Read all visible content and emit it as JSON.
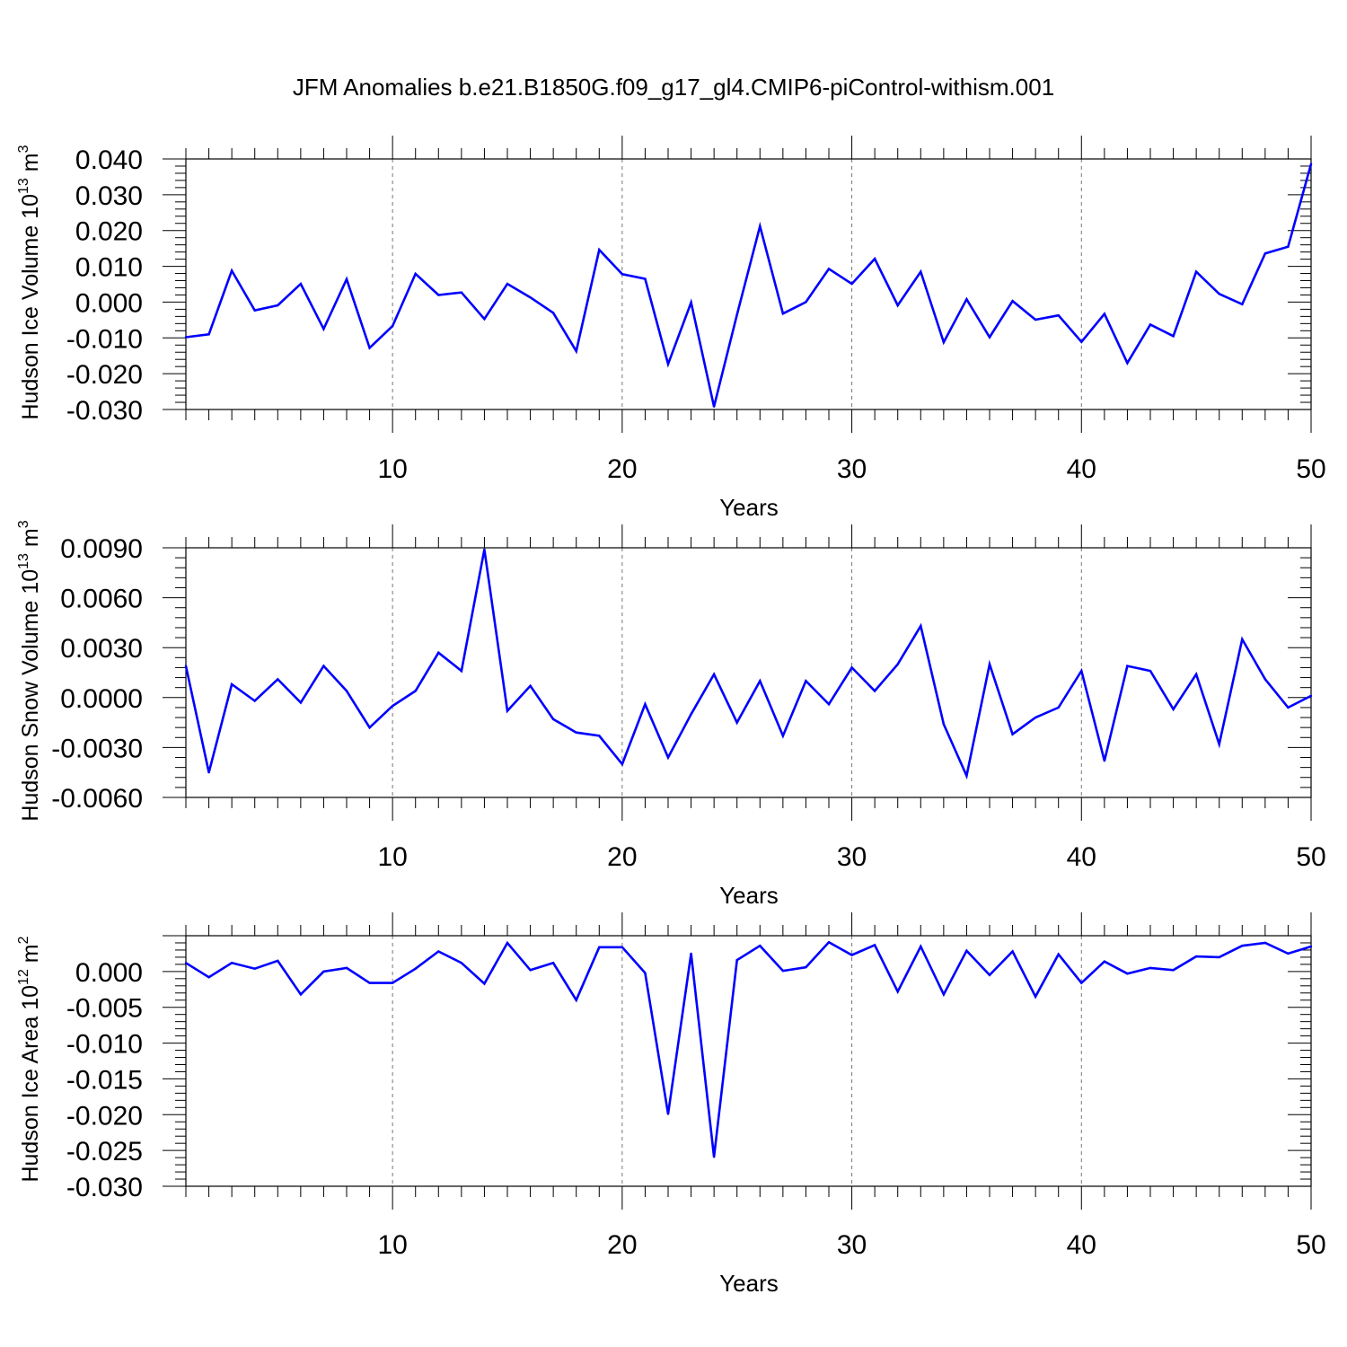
{
  "title": "JFM Anomalies b.e21.B1850G.f09_g17_gl4.CMIP6-piControl-withism.001",
  "colors": {
    "line": "#0000ff",
    "axes": "#000000",
    "grid": "#777777"
  },
  "chart_data": [
    {
      "type": "line",
      "xlabel": "Years",
      "ylabel": "Hudson Ice Volume 10",
      "ylabel_exp": "13",
      "ylabel_unit": " m",
      "ylabel_unit_exp": "3",
      "xlim": [
        1,
        50
      ],
      "ylim": [
        -0.03,
        0.04
      ],
      "xticks": [
        10,
        20,
        30,
        40,
        50
      ],
      "xtick_labels": [
        "10",
        "20",
        "30",
        "40",
        "50"
      ],
      "yticks": [
        -0.03,
        -0.02,
        -0.01,
        0.0,
        0.01,
        0.02,
        0.03,
        0.04
      ],
      "ytick_labels": [
        "-0.030",
        "-0.020",
        "-0.010",
        "0.000",
        "0.010",
        "0.020",
        "0.030",
        "0.040"
      ],
      "grid": "x-dashed",
      "x": [
        1,
        2,
        3,
        4,
        5,
        6,
        7,
        8,
        9,
        10,
        11,
        12,
        13,
        14,
        15,
        16,
        17,
        18,
        19,
        20,
        21,
        22,
        23,
        24,
        25,
        26,
        27,
        28,
        29,
        30,
        31,
        32,
        33,
        34,
        35,
        36,
        37,
        38,
        39,
        40,
        41,
        42,
        43,
        44,
        45,
        46,
        47,
        48,
        49,
        50
      ],
      "y": [
        -0.0098,
        -0.009,
        0.0088,
        -0.0023,
        -0.0009,
        0.0051,
        -0.0075,
        0.0064,
        -0.0128,
        -0.0067,
        0.0079,
        0.002,
        0.0027,
        -0.0047,
        0.0051,
        0.0013,
        -0.003,
        -0.0137,
        0.0146,
        0.0078,
        0.0065,
        -0.0173,
        -0.0001,
        -0.0292,
        -0.0035,
        0.0212,
        -0.0032,
        0.0,
        0.0093,
        0.0051,
        0.0121,
        -0.0009,
        0.0085,
        -0.0112,
        0.0008,
        -0.0098,
        0.0003,
        -0.0049,
        -0.0037,
        -0.0111,
        -0.0033,
        -0.017,
        -0.0063,
        -0.0095,
        0.0085,
        0.0023,
        -0.0006,
        0.0136,
        0.0155,
        0.0386
      ]
    },
    {
      "type": "line",
      "xlabel": "Years",
      "ylabel": "Hudson Snow Volume 10",
      "ylabel_exp": "13",
      "ylabel_unit": " m",
      "ylabel_unit_exp": "3",
      "xlim": [
        1,
        50
      ],
      "ylim": [
        -0.006,
        0.009
      ],
      "xticks": [
        10,
        20,
        30,
        40,
        50
      ],
      "xtick_labels": [
        "10",
        "20",
        "30",
        "40",
        "50"
      ],
      "yticks": [
        -0.006,
        -0.003,
        0.0,
        0.003,
        0.006,
        0.009
      ],
      "ytick_labels": [
        "-0.0060",
        "-0.0030",
        "0.0000",
        "0.0030",
        "0.0060",
        "0.0090"
      ],
      "grid": "x-dashed",
      "x": [
        1,
        2,
        3,
        4,
        5,
        6,
        7,
        8,
        9,
        10,
        11,
        12,
        13,
        14,
        15,
        16,
        17,
        18,
        19,
        20,
        21,
        22,
        23,
        24,
        25,
        26,
        27,
        28,
        29,
        30,
        31,
        32,
        33,
        34,
        35,
        36,
        37,
        38,
        39,
        40,
        41,
        42,
        43,
        44,
        45,
        46,
        47,
        48,
        49,
        50
      ],
      "y": [
        0.0019,
        -0.0045,
        0.0008,
        -0.0002,
        0.0011,
        -0.0003,
        0.0019,
        0.0004,
        -0.0018,
        -0.0005,
        0.0004,
        0.0027,
        0.0016,
        0.0089,
        -0.0008,
        0.0007,
        -0.0013,
        -0.0021,
        -0.0023,
        -0.004,
        -0.0004,
        -0.0036,
        -0.001,
        0.0014,
        -0.0015,
        0.001,
        -0.0023,
        0.001,
        -0.0004,
        0.0018,
        0.0004,
        0.002,
        0.0043,
        -0.0016,
        -0.0047,
        0.002,
        -0.0022,
        -0.0012,
        -0.0006,
        0.0016,
        -0.0038,
        0.0019,
        0.0016,
        -0.0007,
        0.0014,
        -0.0028,
        0.0035,
        0.0011,
        -0.0006,
        0.0001
      ]
    },
    {
      "type": "line",
      "xlabel": "Years",
      "ylabel": "Hudson Ice Area 10",
      "ylabel_exp": "12",
      "ylabel_unit": " m",
      "ylabel_unit_exp": "2",
      "xlim": [
        1,
        50
      ],
      "ylim": [
        -0.03,
        0.005
      ],
      "xticks": [
        10,
        20,
        30,
        40,
        50
      ],
      "xtick_labels": [
        "10",
        "20",
        "30",
        "40",
        "50"
      ],
      "yticks": [
        -0.03,
        -0.025,
        -0.02,
        -0.015,
        -0.01,
        -0.005,
        0.0
      ],
      "ytick_labels": [
        "-0.030",
        "-0.025",
        "-0.020",
        "-0.015",
        "-0.010",
        "-0.005",
        "0.000"
      ],
      "grid": "x-dashed",
      "x": [
        1,
        2,
        3,
        4,
        5,
        6,
        7,
        8,
        9,
        10,
        11,
        12,
        13,
        14,
        15,
        16,
        17,
        18,
        19,
        20,
        21,
        22,
        23,
        24,
        25,
        26,
        27,
        28,
        29,
        30,
        31,
        32,
        33,
        34,
        35,
        36,
        37,
        38,
        39,
        40,
        41,
        42,
        43,
        44,
        45,
        46,
        47,
        48,
        49,
        50
      ],
      "y": [
        0.0012,
        -0.0008,
        0.0012,
        0.0004,
        0.0015,
        -0.0032,
        0.0,
        0.0005,
        -0.0016,
        -0.0016,
        0.0004,
        0.0028,
        0.0012,
        -0.0017,
        0.004,
        0.0002,
        0.0012,
        -0.004,
        0.0034,
        0.0034,
        -0.0002,
        -0.0199,
        0.0025,
        -0.0259,
        0.0016,
        0.0036,
        0.0001,
        0.0006,
        0.0041,
        0.0023,
        0.0037,
        -0.0028,
        0.0035,
        -0.0032,
        0.0029,
        -0.0005,
        0.0028,
        -0.0035,
        0.0024,
        -0.0016,
        0.0014,
        -0.0003,
        0.0005,
        0.0002,
        0.0021,
        0.002,
        0.0036,
        0.004,
        0.0025,
        0.0035
      ]
    }
  ]
}
